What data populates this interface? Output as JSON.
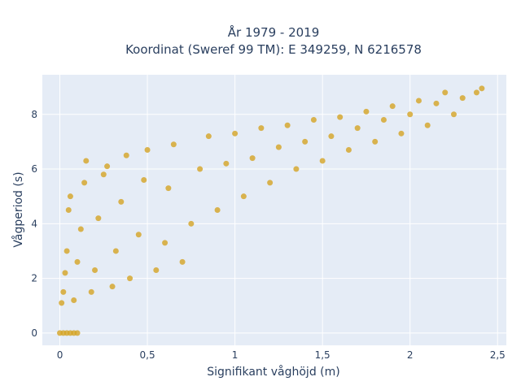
{
  "chart_data": {
    "type": "scatter",
    "title_lines": [
      "År 1979 - 2019",
      "Koordinat (Sweref 99 TM): E 349259, N 6216578"
    ],
    "xlabel": "Signifikant våghöjd (m)",
    "ylabel": "Vågperiod (s)",
    "xlim": [
      -0.1,
      2.55
    ],
    "ylim": [
      -0.45,
      9.45
    ],
    "x_ticks": [
      0,
      0.5,
      1,
      1.5,
      2,
      2.5
    ],
    "x_tick_labels": [
      "0",
      "0,5",
      "1",
      "1,5",
      "2",
      "2,5"
    ],
    "y_ticks": [
      0,
      2,
      4,
      6,
      8
    ],
    "y_tick_labels": [
      "0",
      "2",
      "4",
      "6",
      "8"
    ],
    "grid": true,
    "plot_background": "#e5ecf6",
    "series": [
      {
        "color": "#d4a424",
        "points": [
          [
            0.0,
            0.0
          ],
          [
            0.02,
            0.0
          ],
          [
            0.04,
            0.0
          ],
          [
            0.06,
            0.0
          ],
          [
            0.08,
            0.0
          ],
          [
            0.1,
            0.0
          ],
          [
            0.01,
            1.1
          ],
          [
            0.02,
            1.5
          ],
          [
            0.03,
            2.2
          ],
          [
            0.04,
            3.0
          ],
          [
            0.05,
            4.5
          ],
          [
            0.06,
            5.0
          ],
          [
            0.08,
            1.2
          ],
          [
            0.1,
            2.6
          ],
          [
            0.12,
            3.8
          ],
          [
            0.14,
            5.5
          ],
          [
            0.15,
            6.3
          ],
          [
            0.18,
            1.5
          ],
          [
            0.2,
            2.3
          ],
          [
            0.22,
            4.2
          ],
          [
            0.25,
            5.8
          ],
          [
            0.27,
            6.1
          ],
          [
            0.3,
            1.7
          ],
          [
            0.32,
            3.0
          ],
          [
            0.35,
            4.8
          ],
          [
            0.38,
            6.5
          ],
          [
            0.4,
            2.0
          ],
          [
            0.45,
            3.6
          ],
          [
            0.48,
            5.6
          ],
          [
            0.5,
            6.7
          ],
          [
            0.55,
            2.3
          ],
          [
            0.6,
            3.3
          ],
          [
            0.62,
            5.3
          ],
          [
            0.65,
            6.9
          ],
          [
            0.7,
            2.6
          ],
          [
            0.75,
            4.0
          ],
          [
            0.8,
            6.0
          ],
          [
            0.85,
            7.2
          ],
          [
            0.9,
            4.5
          ],
          [
            0.95,
            6.2
          ],
          [
            1.0,
            7.3
          ],
          [
            1.05,
            5.0
          ],
          [
            1.1,
            6.4
          ],
          [
            1.15,
            7.5
          ],
          [
            1.2,
            5.5
          ],
          [
            1.25,
            6.8
          ],
          [
            1.3,
            7.6
          ],
          [
            1.35,
            6.0
          ],
          [
            1.4,
            7.0
          ],
          [
            1.45,
            7.8
          ],
          [
            1.5,
            6.3
          ],
          [
            1.55,
            7.2
          ],
          [
            1.6,
            7.9
          ],
          [
            1.65,
            6.7
          ],
          [
            1.7,
            7.5
          ],
          [
            1.75,
            8.1
          ],
          [
            1.8,
            7.0
          ],
          [
            1.85,
            7.8
          ],
          [
            1.9,
            8.3
          ],
          [
            1.95,
            7.3
          ],
          [
            2.0,
            8.0
          ],
          [
            2.05,
            8.5
          ],
          [
            2.1,
            7.6
          ],
          [
            2.15,
            8.4
          ],
          [
            2.2,
            8.8
          ],
          [
            2.25,
            8.0
          ],
          [
            2.3,
            8.6
          ],
          [
            2.38,
            8.8
          ],
          [
            2.41,
            8.95
          ]
        ]
      }
    ]
  }
}
